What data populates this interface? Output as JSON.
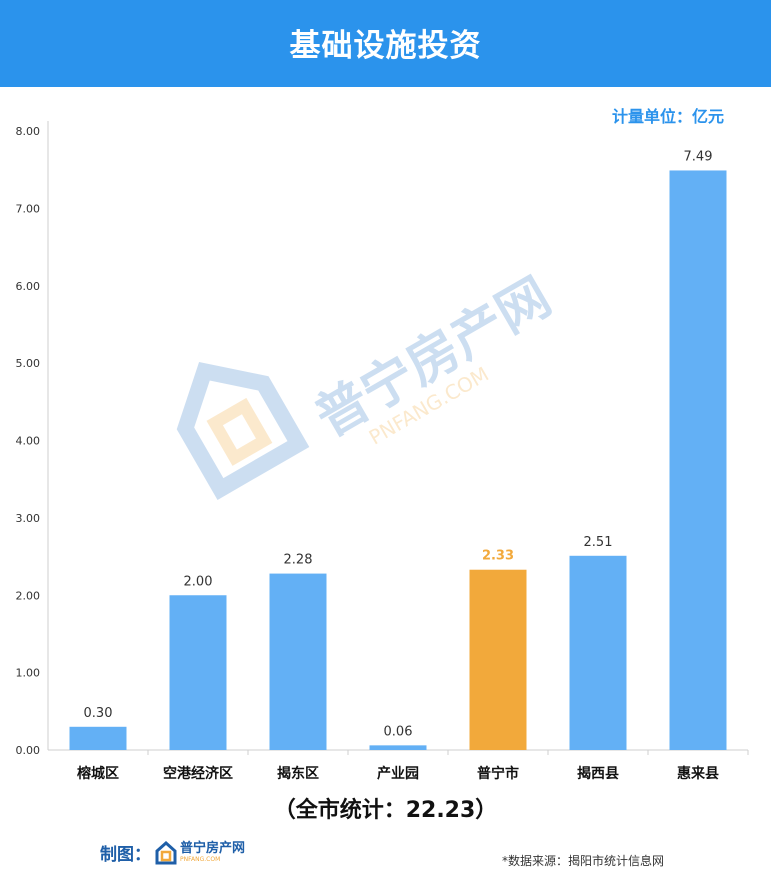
{
  "header": {
    "title": "基础设施投资"
  },
  "unit_label": "计量单位：亿元",
  "total_label": "（全市统计：22.23）",
  "maker_label": "制图：",
  "logo": {
    "text_cn": "普宁房产网",
    "text_en": "PNFANG.COM"
  },
  "watermark": {
    "text_cn": "普宁房产网",
    "text_en": "PNFANG.COM"
  },
  "source": "*数据来源：揭阳市统计信息网",
  "colors": {
    "header": "#2b93ec",
    "bar": "#63b0f5",
    "highlight": "#f2a93b"
  },
  "chart_data": {
    "type": "bar",
    "categories": [
      "榕城区",
      "空港经济区",
      "揭东区",
      "产业园",
      "普宁市",
      "揭西县",
      "惠来县"
    ],
    "values": [
      0.3,
      2.0,
      2.28,
      0.06,
      2.33,
      2.51,
      7.49
    ],
    "value_labels": [
      "0.30",
      "2.00",
      "2.28",
      "0.06",
      "2.33",
      "2.51",
      "7.49"
    ],
    "highlight": "普宁市",
    "ylim": [
      0,
      8
    ],
    "yticks": [
      "0.00",
      "1.00",
      "2.00",
      "3.00",
      "4.00",
      "5.00",
      "6.00",
      "7.00",
      "8.00"
    ],
    "grid": false,
    "legend": "none"
  }
}
